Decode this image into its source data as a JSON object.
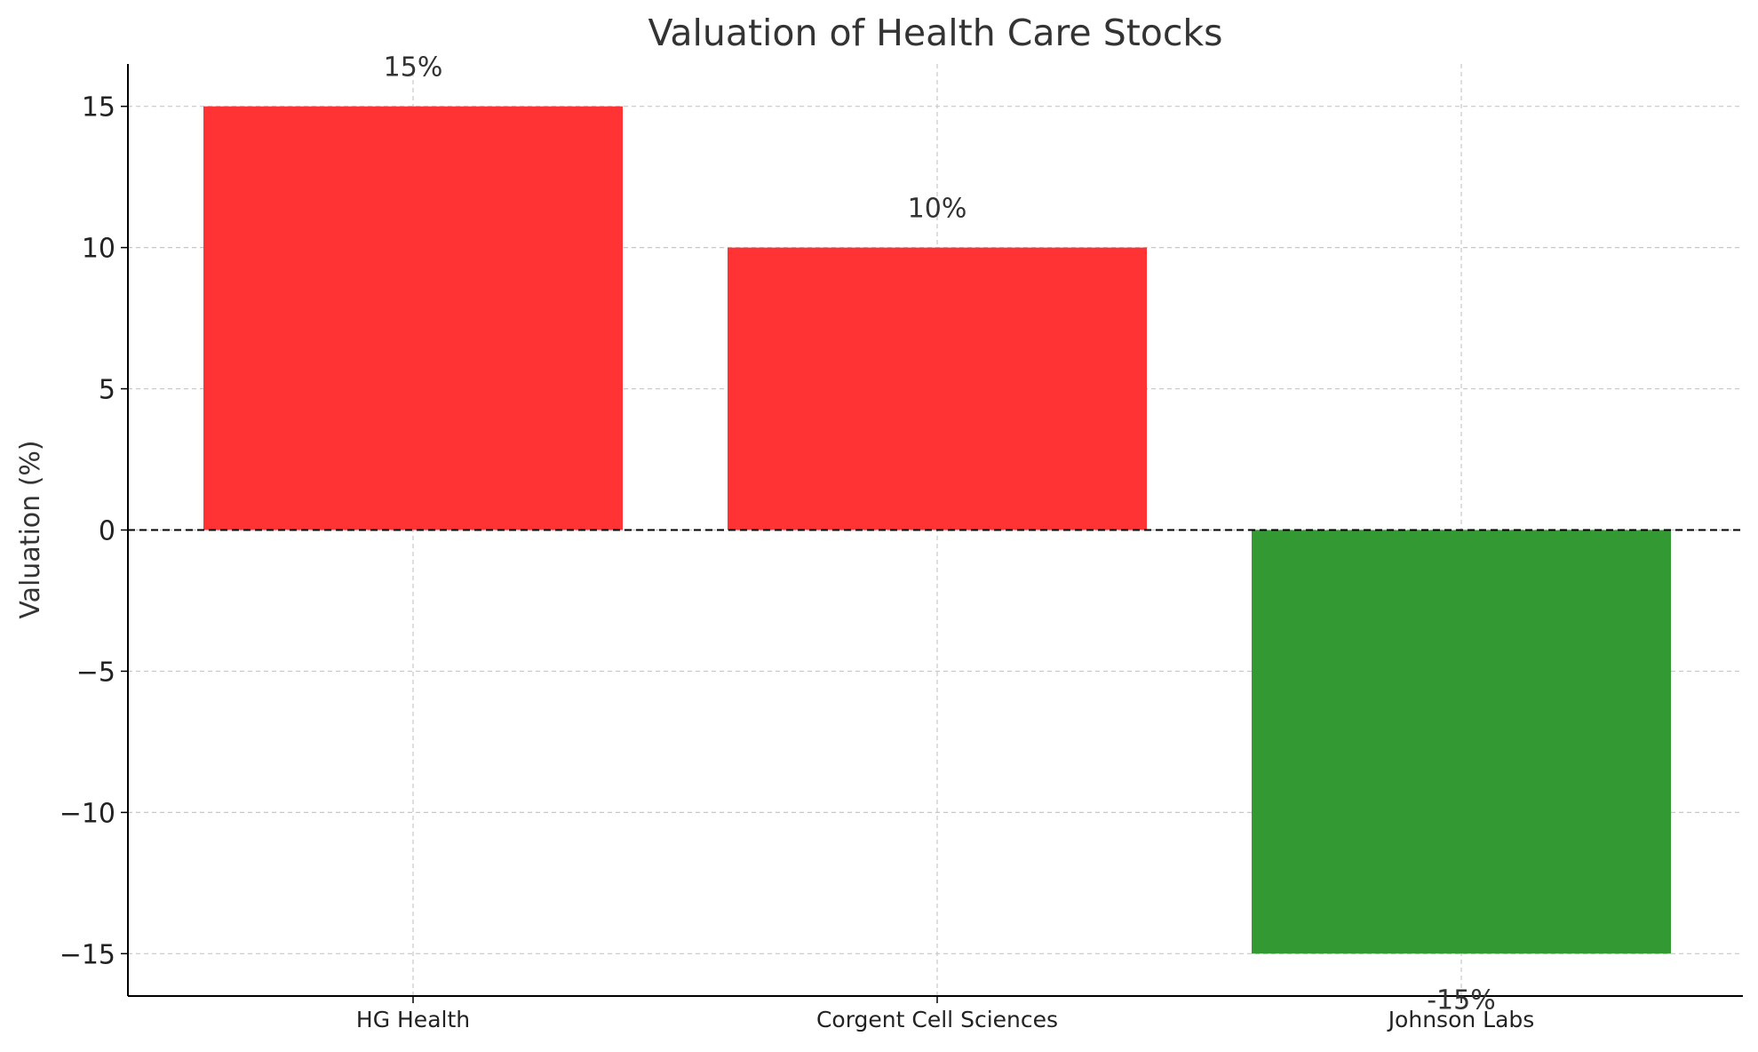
{
  "chart_data": {
    "type": "bar",
    "title": "Valuation of Health Care Stocks",
    "xlabel": "",
    "ylabel": "Valuation (%)",
    "categories": [
      "HG Health",
      "Corgent Cell Sciences",
      "Johnson Labs"
    ],
    "values": [
      15,
      10,
      -15
    ],
    "data_labels": [
      "15%",
      "10%",
      "-15%"
    ],
    "colors": [
      "#ff3333",
      "#ff3333",
      "#339933"
    ],
    "ylim": [
      -16.5,
      16.5
    ],
    "yticks": [
      15,
      10,
      5,
      0,
      -5,
      -10,
      -15
    ],
    "ytick_labels": [
      "15",
      "10",
      "5",
      "0",
      "−5",
      "−10",
      "−15"
    ],
    "grid": true,
    "zero_line": "dashed",
    "legend": "none"
  }
}
